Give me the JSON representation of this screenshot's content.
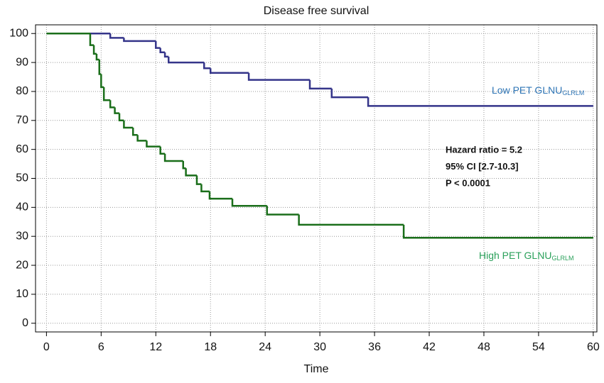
{
  "chart_data": {
    "type": "step",
    "title": "Disease free survival",
    "x_label": "Time",
    "xlim": [
      -1.2,
      60.4
    ],
    "ylim": [
      -3,
      103
    ],
    "xticks": [
      0,
      6,
      12,
      18,
      24,
      30,
      36,
      42,
      48,
      54,
      60
    ],
    "yticks": [
      0,
      10,
      20,
      30,
      40,
      50,
      60,
      70,
      80,
      90,
      100
    ],
    "grid": true,
    "series": [
      {
        "name": "Low PET GLNU",
        "subscript": "GLRLM",
        "color": "#35358a",
        "label_color": "#2e75b6",
        "x": [
          0,
          7,
          8.5,
          12,
          12.5,
          13,
          13.4,
          17.3,
          18,
          22.2,
          28.9,
          31.3,
          35.3,
          60
        ],
        "values": [
          100,
          98.5,
          97.4,
          95,
          93.5,
          92,
          90,
          88,
          86.4,
          84,
          81,
          78,
          75,
          75
        ]
      },
      {
        "name": "High PET GLNU",
        "subscript": "GLRLM",
        "color": "#1a6e1a",
        "label_color": "#2aa05a",
        "x": [
          0,
          4.8,
          5.2,
          5.5,
          5.8,
          6.0,
          6.3,
          7.0,
          7.5,
          8.0,
          8.5,
          9.5,
          10.0,
          11.0,
          12.5,
          13.0,
          15.0,
          15.3,
          16.5,
          17.0,
          17.9,
          20.4,
          24.2,
          27.7,
          39.2,
          60
        ],
        "values": [
          100,
          96,
          93,
          91,
          86,
          81.5,
          77,
          74.5,
          72.5,
          70,
          67.5,
          65,
          63,
          61,
          58.5,
          56,
          53.5,
          51,
          48,
          45.5,
          43,
          40.5,
          37.5,
          34,
          29.5,
          29.5
        ]
      }
    ],
    "annotations": [
      "Hazard ratio = 5.2",
      "95% CI [2.7-10.3]",
      "P < 0.0001"
    ]
  }
}
